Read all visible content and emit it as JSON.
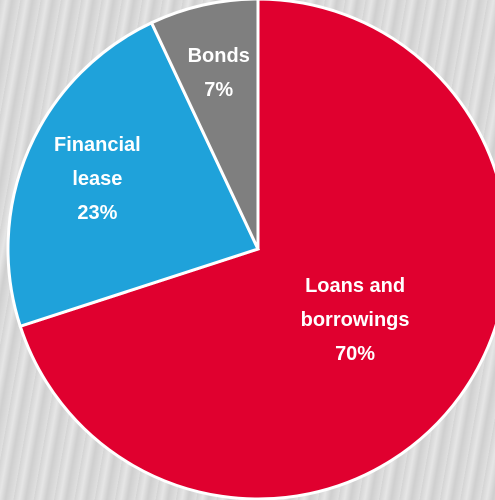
{
  "chart_data": {
    "type": "pie",
    "categories": [
      "Loans and borrowings",
      "Financial lease",
      "Bonds"
    ],
    "values": [
      70,
      23,
      7
    ],
    "value_labels": [
      "70%",
      "23%",
      "7%"
    ],
    "colors": [
      "#e0002f",
      "#1fa2da",
      "#7f7f7f"
    ]
  }
}
